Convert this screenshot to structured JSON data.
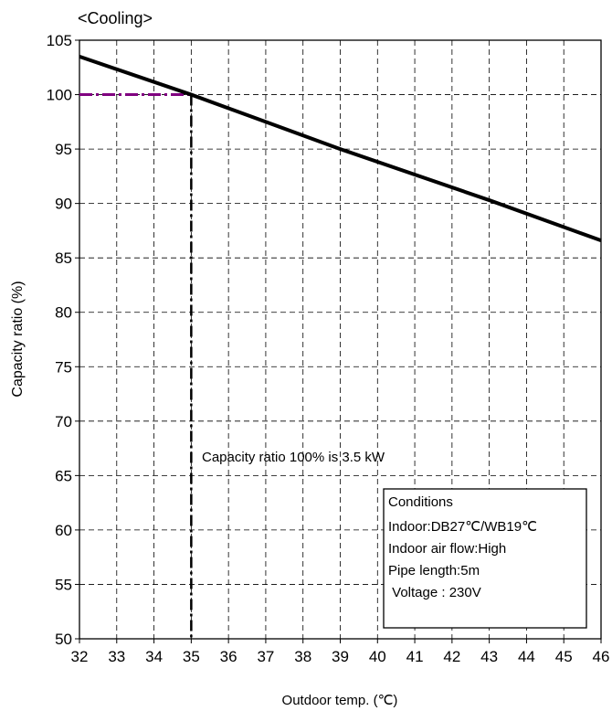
{
  "chart_data": {
    "type": "line",
    "title": "<Cooling>",
    "xlabel": "Outdoor temp. (℃)",
    "ylabel": "Capacity ratio (%)",
    "xlim": [
      32,
      46
    ],
    "ylim": [
      50,
      105
    ],
    "x_ticks": [
      "32",
      "33",
      "34",
      "35",
      "36",
      "37",
      "38",
      "39",
      "40",
      "41",
      "42",
      "43",
      "44",
      "45",
      "46"
    ],
    "y_ticks": [
      "50",
      "55",
      "60",
      "65",
      "70",
      "75",
      "80",
      "85",
      "90",
      "95",
      "100",
      "105"
    ],
    "grid": true,
    "series": [
      {
        "x": [
          32,
          35,
          39,
          43,
          46
        ],
        "y": [
          103.5,
          100,
          95,
          90.3,
          86.6
        ],
        "color": "#000000"
      }
    ],
    "reference_lines": {
      "horizontal": {
        "x": [
          32,
          35
        ],
        "y": 100,
        "color": "#800080"
      },
      "vertical": {
        "x": 35,
        "y": [
          50,
          100
        ],
        "color": "#000000"
      }
    },
    "annotation": "Capacity ratio  100% is 3.5 kW",
    "conditions": [
      "Conditions",
      "Indoor:DB27℃/WB19℃",
      "Indoor air flow:High",
      "Pipe length:5m",
      " Voltage : 230V"
    ]
  }
}
